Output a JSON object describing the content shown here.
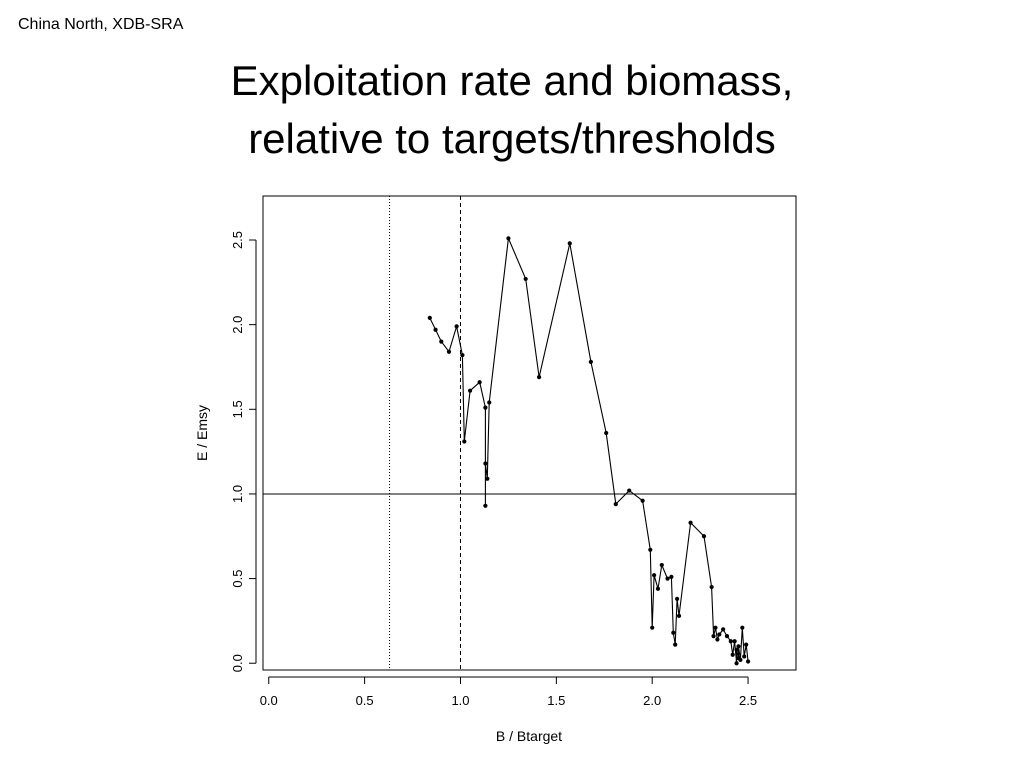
{
  "corner_label": "China North, XDB-SRA",
  "title_lines": [
    "Exploitation rate and biomass,",
    "relative to targets/thresholds"
  ],
  "chart_data": {
    "type": "line",
    "title": "",
    "xlabel": "B / Btarget",
    "ylabel": "E / Emsy",
    "xlim": [
      -0.03,
      2.75
    ],
    "ylim": [
      -0.04,
      2.76
    ],
    "xticks": [
      "0.0",
      "0.5",
      "1.0",
      "1.5",
      "2.0",
      "2.5"
    ],
    "yticks": [
      "0.0",
      "0.5",
      "1.0",
      "1.5",
      "2.0",
      "2.5"
    ],
    "grid": false,
    "reference_lines": [
      {
        "axis": "x",
        "value": 0.63,
        "style": "dotted"
      },
      {
        "axis": "x",
        "value": 1.0,
        "style": "dashed"
      },
      {
        "axis": "y",
        "value": 1.0,
        "style": "solid"
      }
    ],
    "series": [
      {
        "x": [
          0.84,
          0.87,
          0.9,
          0.94,
          0.98,
          1.01,
          1.02,
          1.05,
          1.1,
          1.13,
          1.13,
          1.13,
          1.14,
          1.15,
          1.25,
          1.34,
          1.41,
          1.57,
          1.68,
          1.76,
          1.81,
          1.88,
          1.95,
          1.99,
          2.0,
          2.01,
          2.03,
          2.05,
          2.08,
          2.1,
          2.11,
          2.12,
          2.13,
          2.14,
          2.2,
          2.27,
          2.31,
          2.32,
          2.33,
          2.34,
          2.35,
          2.37,
          2.39,
          2.41,
          2.42,
          2.43,
          2.44,
          2.44,
          2.45,
          2.45,
          2.46,
          2.47,
          2.48,
          2.49,
          2.5
        ],
        "y": [
          2.04,
          1.97,
          1.9,
          1.84,
          1.99,
          1.82,
          1.31,
          1.61,
          1.66,
          1.51,
          0.93,
          1.18,
          1.09,
          1.54,
          2.51,
          2.27,
          1.69,
          2.48,
          1.78,
          1.36,
          0.94,
          1.02,
          0.96,
          0.67,
          0.21,
          0.52,
          0.44,
          0.58,
          0.5,
          0.51,
          0.18,
          0.11,
          0.38,
          0.28,
          0.83,
          0.75,
          0.45,
          0.16,
          0.21,
          0.14,
          0.17,
          0.2,
          0.16,
          0.13,
          0.05,
          0.13,
          0.0,
          0.08,
          0.03,
          0.1,
          0.02,
          0.21,
          0.04,
          0.11,
          0.01
        ]
      }
    ]
  }
}
